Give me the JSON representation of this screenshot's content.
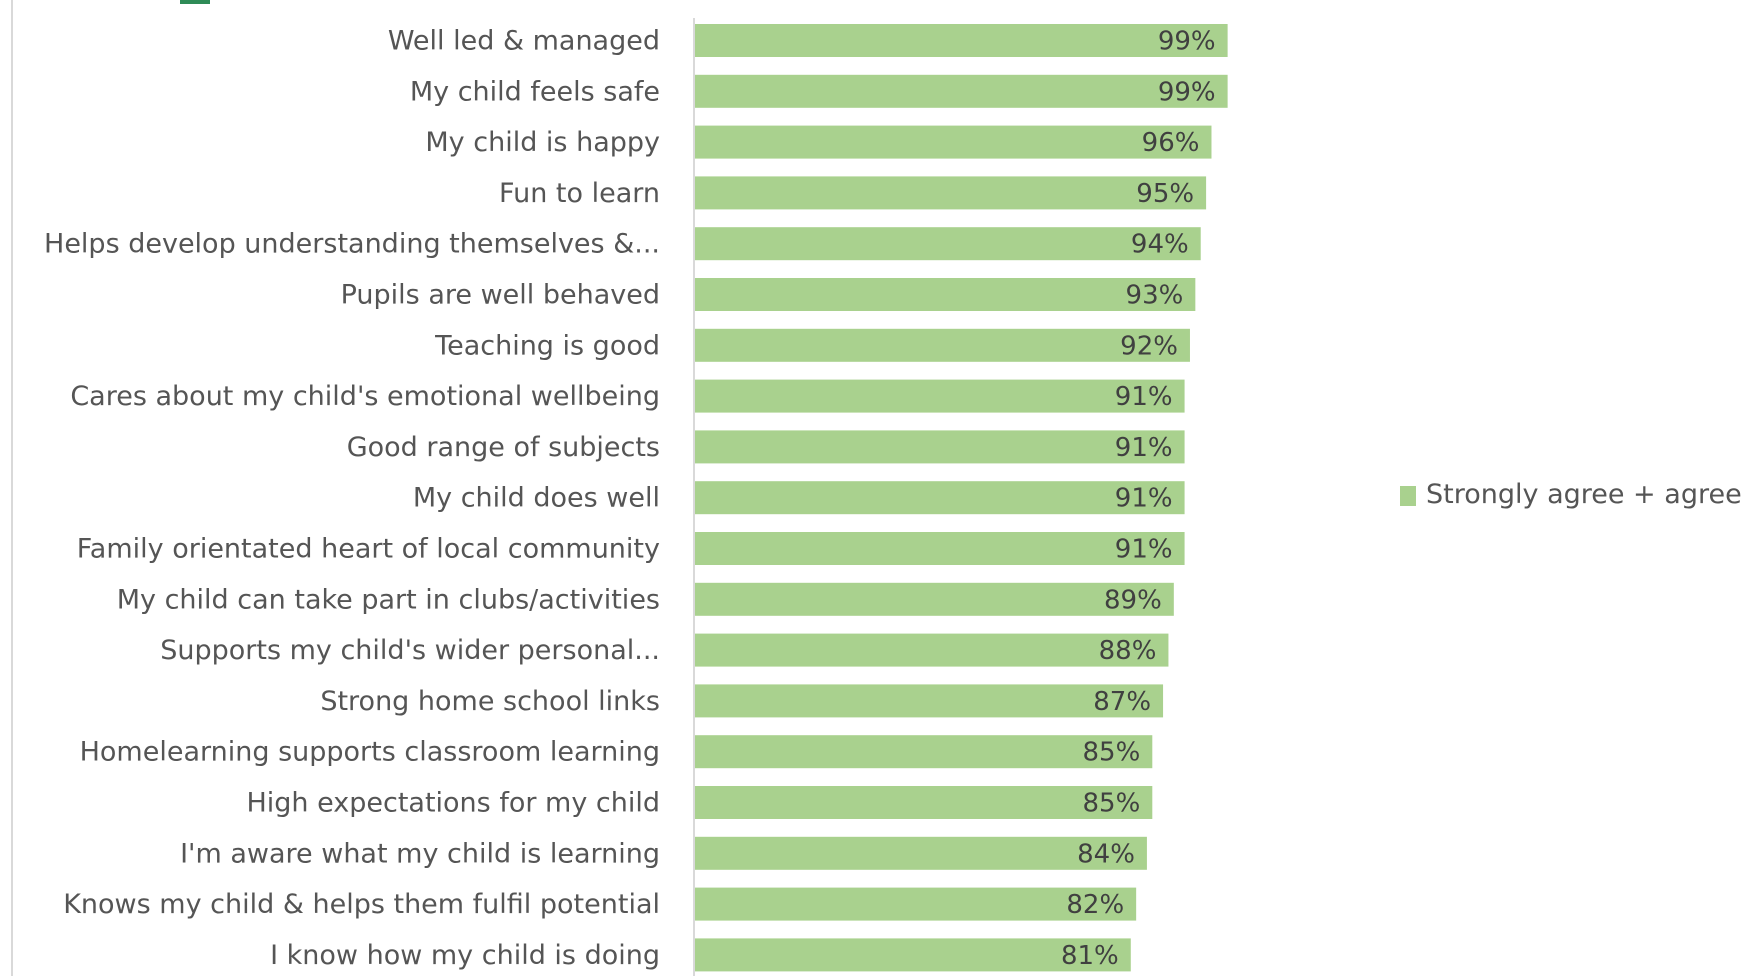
{
  "chart_data": {
    "type": "bar",
    "orientation": "horizontal",
    "categories": [
      "Well led & managed",
      "My child feels safe",
      "My child is happy",
      "Fun to learn",
      "Helps develop understanding themselves &...",
      "Pupils are well behaved",
      "Teaching is good",
      "Cares about my child's emotional wellbeing",
      "Good range of subjects",
      "My child does well",
      "Family orientated heart of local community",
      "My child can take part in clubs/activities",
      "Supports my child's wider personal...",
      "Strong home school links",
      "Homelearning supports classroom learning",
      "High expectations for my child",
      "I'm aware what my child is learning",
      "Knows my child & helps them fulfil potential",
      "I know how my child is doing"
    ],
    "series": [
      {
        "name": "Strongly agree + agree",
        "color": "#a9d18e",
        "values": [
          99,
          99,
          96,
          95,
          94,
          93,
          92,
          91,
          91,
          91,
          91,
          89,
          88,
          87,
          85,
          85,
          84,
          82,
          81
        ],
        "labels": [
          "99%",
          "99%",
          "96%",
          "95%",
          "94%",
          "93%",
          "92%",
          "91%",
          "91%",
          "91%",
          "91%",
          "89%",
          "88%",
          "87%",
          "85%",
          "85%",
          "84%",
          "82%",
          "81%"
        ]
      }
    ],
    "xlim": [
      0,
      100
    ],
    "data_labels": true,
    "grid": false,
    "legend": {
      "placement": "right"
    }
  }
}
